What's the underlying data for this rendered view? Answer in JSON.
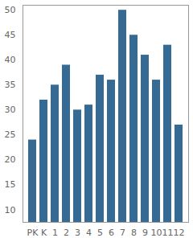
{
  "chart_data": {
    "type": "bar",
    "categories": [
      "PK",
      "K",
      "1",
      "2",
      "3",
      "4",
      "5",
      "6",
      "7",
      "8",
      "9",
      "10",
      "11",
      "12"
    ],
    "values": [
      24,
      32,
      35,
      39,
      30,
      31,
      37,
      36,
      50,
      45,
      41,
      36,
      43,
      27
    ],
    "color": "#346a94",
    "ylim": [
      7.5,
      51
    ],
    "yticks": [
      10,
      15,
      20,
      25,
      30,
      35,
      40,
      45,
      50
    ],
    "grid": false
  }
}
